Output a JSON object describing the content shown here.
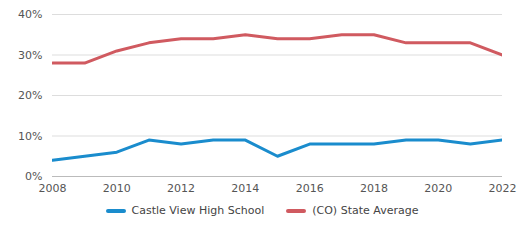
{
  "chart_data": {
    "type": "line",
    "x": [
      2008,
      2009,
      2010,
      2011,
      2012,
      2013,
      2014,
      2015,
      2016,
      2017,
      2018,
      2019,
      2020,
      2021,
      2022
    ],
    "series": [
      {
        "name": "Castle View High School",
        "color": "#1a8ccd",
        "values": [
          4,
          5,
          6,
          9,
          8,
          9,
          9,
          5,
          8,
          8,
          8,
          9,
          9,
          8,
          9
        ]
      },
      {
        "name": "(CO) State Average",
        "color": "#d05a60",
        "values": [
          28,
          28,
          31,
          33,
          34,
          34,
          35,
          34,
          34,
          35,
          35,
          33,
          33,
          33,
          30
        ]
      }
    ],
    "xlim": [
      2008,
      2022
    ],
    "xticks": [
      2008,
      2010,
      2012,
      2014,
      2016,
      2018,
      2020,
      2022
    ],
    "ylim": [
      0,
      40
    ],
    "yticks": [
      {
        "value": 0,
        "label": "0%"
      },
      {
        "value": 10,
        "label": "10%"
      },
      {
        "value": 20,
        "label": "20%"
      },
      {
        "value": 30,
        "label": "30%"
      },
      {
        "value": 40,
        "label": "40%"
      }
    ],
    "grid": true,
    "legend": "bottom"
  }
}
